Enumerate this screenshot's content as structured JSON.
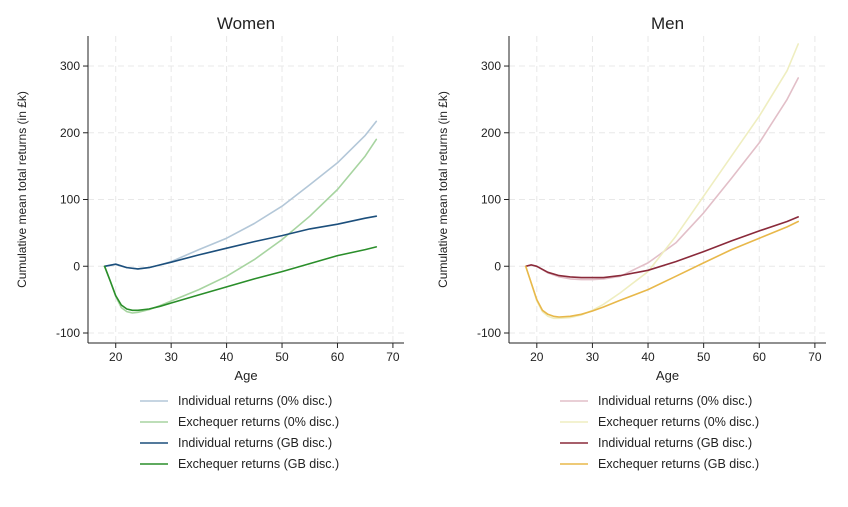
{
  "chart_data": [
    {
      "type": "line",
      "title": "Women",
      "xlabel": "Age",
      "ylabel": "Cumulative mean total returns (in £k)",
      "xlim": [
        15,
        72
      ],
      "ylim": [
        -115,
        345
      ],
      "xticks": [
        20,
        30,
        40,
        50,
        60,
        70
      ],
      "yticks": [
        -100,
        0,
        100,
        200,
        300
      ],
      "grid": true,
      "legend_position": "bottom",
      "series": [
        {
          "name": "Individual returns (0% disc.)",
          "color": "#b3c7d8",
          "x": [
            18,
            20,
            22,
            24,
            26,
            28,
            30,
            35,
            40,
            45,
            50,
            55,
            60,
            65,
            67
          ],
          "y": [
            0,
            3,
            -2,
            -4,
            -2,
            2,
            7,
            25,
            42,
            64,
            90,
            122,
            155,
            196,
            217
          ]
        },
        {
          "name": "Exchequer returns (0% disc.)",
          "color": "#a7d4a0",
          "x": [
            18,
            19,
            20,
            21,
            22,
            23,
            24,
            26,
            28,
            30,
            35,
            40,
            45,
            50,
            55,
            60,
            65,
            67
          ],
          "y": [
            0,
            -22,
            -45,
            -62,
            -68,
            -70,
            -69,
            -65,
            -59,
            -52,
            -35,
            -15,
            10,
            40,
            75,
            115,
            165,
            190
          ]
        },
        {
          "name": "Individual returns (GB disc.)",
          "color": "#1c4f7c",
          "x": [
            18,
            20,
            22,
            24,
            26,
            28,
            30,
            35,
            40,
            45,
            50,
            55,
            60,
            65,
            67
          ],
          "y": [
            0,
            3,
            -2,
            -4,
            -2,
            2,
            6,
            17,
            27,
            37,
            46,
            56,
            63,
            72,
            75
          ]
        },
        {
          "name": "Exchequer returns (GB disc.)",
          "color": "#2a8e2a",
          "x": [
            18,
            19,
            20,
            21,
            22,
            23,
            24,
            26,
            28,
            30,
            35,
            40,
            45,
            50,
            55,
            60,
            65,
            67
          ],
          "y": [
            0,
            -22,
            -44,
            -58,
            -64,
            -66,
            -66,
            -64,
            -60,
            -55,
            -43,
            -31,
            -19,
            -8,
            4,
            16,
            25,
            29
          ]
        }
      ]
    },
    {
      "type": "line",
      "title": "Men",
      "xlabel": "Age",
      "ylabel": "Cumulative mean total returns (in £k)",
      "xlim": [
        15,
        72
      ],
      "ylim": [
        -115,
        345
      ],
      "xticks": [
        20,
        30,
        40,
        50,
        60,
        70
      ],
      "yticks": [
        -100,
        0,
        100,
        200,
        300
      ],
      "grid": true,
      "legend_position": "bottom",
      "series": [
        {
          "name": "Individual returns (0% disc.)",
          "color": "#e2bfc8",
          "x": [
            18,
            19,
            20,
            22,
            24,
            26,
            28,
            30,
            32,
            35,
            40,
            45,
            50,
            55,
            60,
            65,
            67
          ],
          "y": [
            0,
            2,
            0,
            -10,
            -16,
            -19,
            -20,
            -20,
            -19,
            -15,
            5,
            35,
            80,
            132,
            185,
            250,
            282
          ]
        },
        {
          "name": "Exchequer returns (0% disc.)",
          "color": "#efeec0",
          "x": [
            18,
            19,
            20,
            21,
            22,
            23,
            24,
            26,
            28,
            30,
            32,
            35,
            40,
            45,
            50,
            55,
            60,
            65,
            67
          ],
          "y": [
            0,
            -25,
            -52,
            -68,
            -75,
            -78,
            -78,
            -77,
            -73,
            -66,
            -57,
            -40,
            -8,
            45,
            105,
            165,
            225,
            293,
            333
          ]
        },
        {
          "name": "Individual returns (GB disc.)",
          "color": "#8a2a3a",
          "x": [
            18,
            19,
            20,
            22,
            24,
            26,
            28,
            30,
            32,
            35,
            40,
            45,
            50,
            55,
            60,
            65,
            67
          ],
          "y": [
            0,
            2,
            0,
            -9,
            -14,
            -16,
            -17,
            -17,
            -17,
            -14,
            -6,
            7,
            22,
            38,
            53,
            67,
            74
          ]
        },
        {
          "name": "Exchequer returns (GB disc.)",
          "color": "#e8b84a",
          "x": [
            18,
            19,
            20,
            21,
            22,
            23,
            24,
            26,
            28,
            30,
            32,
            35,
            40,
            45,
            50,
            55,
            60,
            65,
            67
          ],
          "y": [
            0,
            -25,
            -50,
            -66,
            -72,
            -75,
            -76,
            -75,
            -72,
            -67,
            -61,
            -51,
            -35,
            -15,
            5,
            25,
            42,
            59,
            67
          ]
        }
      ]
    }
  ]
}
